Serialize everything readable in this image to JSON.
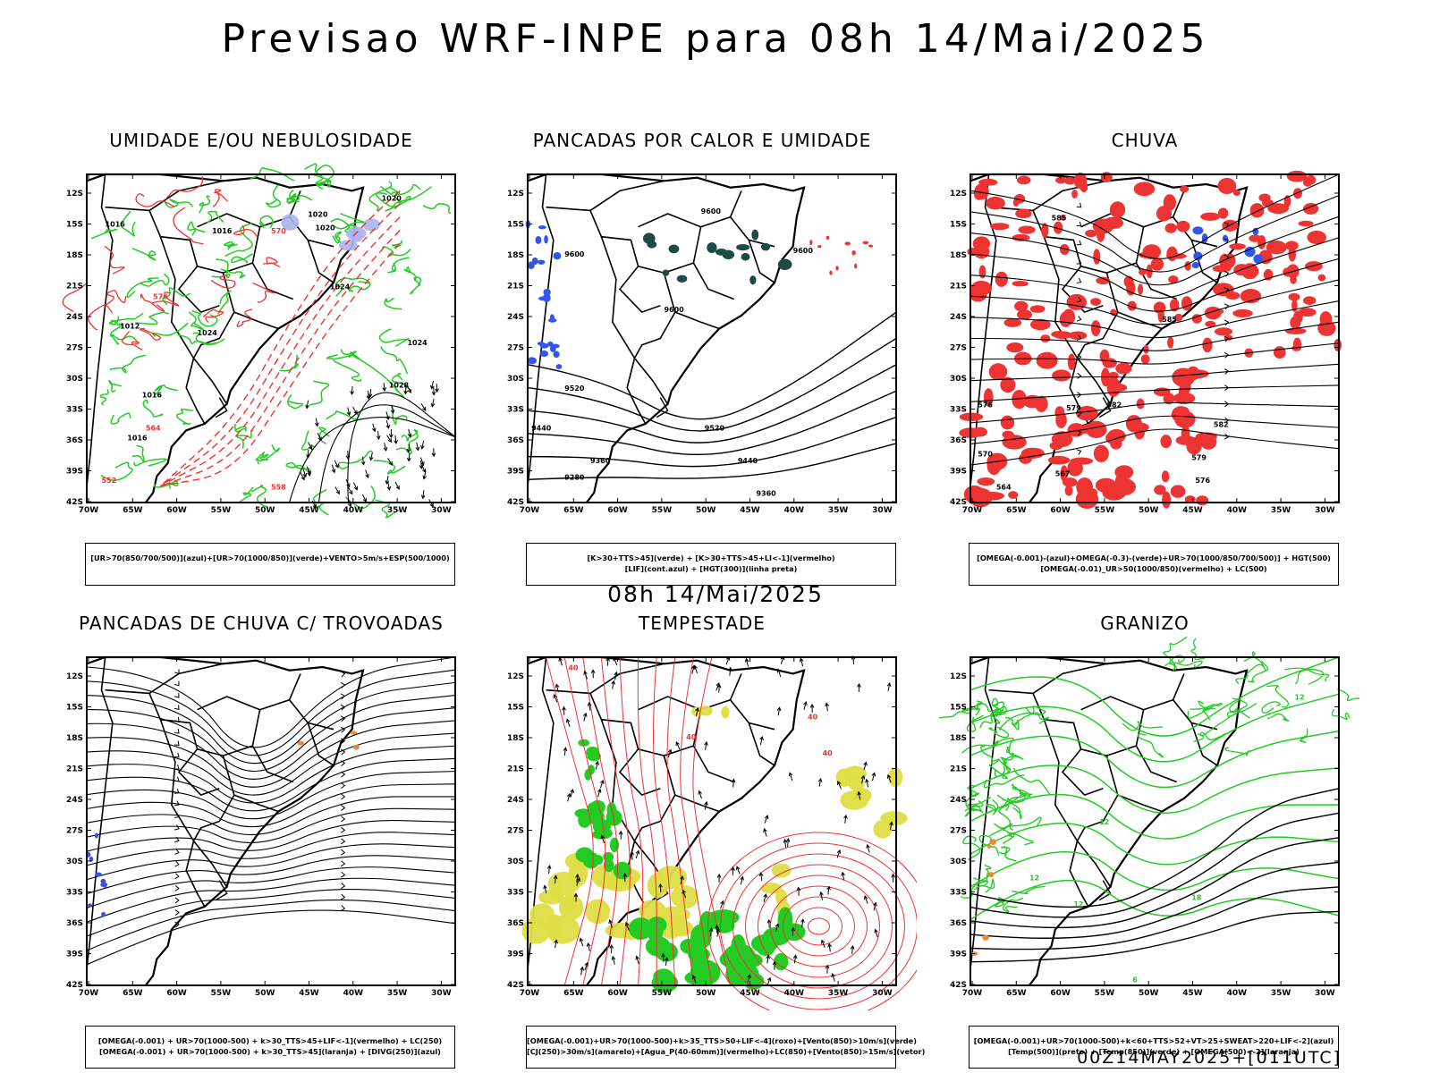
{
  "header": {
    "title": "Previsao WRF-INPE  para 08h 14/Mai/2025"
  },
  "mid_time": "08h 14/Mai/2025",
  "footer": {
    "run_info": "00Z14MAY2025+[011UTC]"
  },
  "axes": {
    "lat_labels": [
      "12S",
      "15S",
      "18S",
      "21S",
      "24S",
      "27S",
      "30S",
      "33S",
      "36S",
      "39S",
      "42S"
    ],
    "lon_labels": [
      "70W",
      "65W",
      "60W",
      "55W",
      "50W",
      "45W",
      "40W",
      "35W",
      "30W"
    ]
  },
  "colors": {
    "green": "#22cc22",
    "red": "#ee3333",
    "blue": "#3355ee",
    "lightblue": "#aab4ee",
    "yellow": "#dede44",
    "orange": "#ee8833",
    "darkgreen": "#1c4a44"
  },
  "panels": [
    {
      "title": "UMIDADE E/OU NEBULOSIDADE",
      "legend": [
        "[UR>70(850/700/500)](azul)+[UR>70(1000/850)](verde)+VENTO>5m/s+ESP(500/1000)"
      ],
      "contour_labels": [
        "1016",
        "1016",
        "1020",
        "1020",
        "1024",
        "1012",
        "1016",
        "1016",
        "1020",
        "1024",
        "1024",
        "1028",
        "570",
        "576",
        "564",
        "558",
        "552"
      ]
    },
    {
      "title": "PANCADAS POR CALOR E UMIDADE",
      "legend": [
        "[K>30+TTS>45](verde) + [K>30+TTS>45+LI<-1](vermelho)",
        "[LIF](cont.azul) + [HGT(300)](linha preta)"
      ],
      "contour_labels": [
        "9600",
        "9600",
        "9600",
        "9600",
        "9520",
        "9440",
        "9520",
        "9440",
        "9360",
        "9280",
        "9360"
      ]
    },
    {
      "title": "CHUVA",
      "legend": [
        "[OMEGA(-0.001)-(azul)+OMEGA(-0.3)-(verde)+UR>70(1000/850/700/500)] + HGT(500)",
        "[OMEGA(-0.01)_UR>50(1000/850)(vermelho) + LC(500)"
      ],
      "contour_labels": [
        "585",
        "585",
        "582",
        "579",
        "576",
        "570",
        "567",
        "564",
        "582",
        "579",
        "576"
      ]
    },
    {
      "title": "PANCADAS DE CHUVA C/ TROVOADAS",
      "legend": [
        "[OMEGA(-0.001) + UR>70(1000-500) + k>30_TTS>45+LIF<-1](vermelho) + LC(250)",
        "[OMEGA(-0.001) + UR>70(1000-500) + k>30_TTS>45](laranja) + [DIVG(250)](azul)"
      ],
      "contour_labels": []
    },
    {
      "title": "TEMPESTADE",
      "legend": [
        "[OMEGA(-0.001)+UR>70(1000-500)+k>35_TTS>50+LIF<-4](roxo)+[Vento(850)>10m/s](verde)",
        "[CJ(250)>30m/s](amarelo)+[Agua_P(40-60mm)](vermelho)+LC(850)+[Vento(850)>15m/s](vetor)"
      ],
      "contour_labels": [
        "40",
        "40",
        "40",
        "40"
      ]
    },
    {
      "title": "GRANIZO",
      "legend": [
        "[OMEGA(-0.001)+UR>70(1000-500)+k<60+TTS>52+VT>25+SWEAT>220+LIF<-2](azul)",
        "[Temp(500)](preto) + [Temp(850)](verde) + [OMEGA(500)<-2](laranja)"
      ],
      "contour_labels": [
        "12",
        "12",
        "12",
        "12",
        "18",
        "6"
      ]
    }
  ]
}
